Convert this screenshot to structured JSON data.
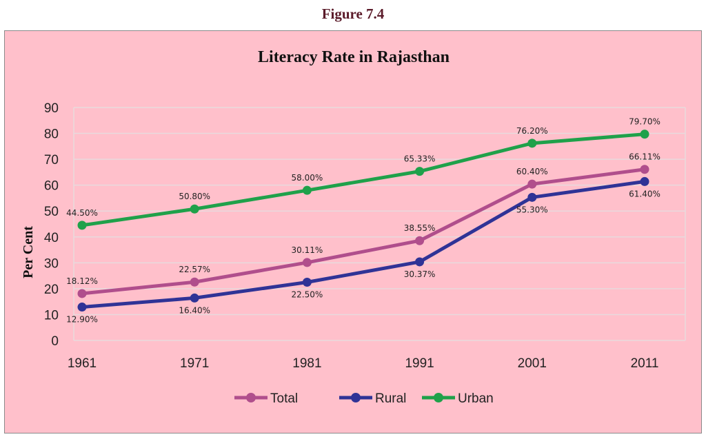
{
  "figure_label": "Figure 7.4",
  "chart_data": {
    "type": "line",
    "title": "Literacy Rate in Rajasthan",
    "xlabel": "",
    "ylabel": "Per Cent",
    "ylim": [
      0,
      90
    ],
    "yticks": [
      0,
      10,
      20,
      30,
      40,
      50,
      60,
      70,
      80,
      90
    ],
    "grid": true,
    "legend_position": "bottom",
    "categories": [
      "1961",
      "1971",
      "1981",
      "1991",
      "2001",
      "2011"
    ],
    "series": [
      {
        "name": "Total",
        "color": "#b04e8c",
        "values": [
          18.12,
          22.57,
          30.11,
          38.55,
          60.4,
          66.11
        ],
        "labels": [
          "18.12%",
          "22.57%",
          "30.11%",
          "38.55%",
          "60.40%",
          "66.11%"
        ],
        "label_positions": [
          "above",
          "above",
          "above",
          "above",
          "above",
          "above"
        ]
      },
      {
        "name": "Rural",
        "color": "#2f3396",
        "values": [
          12.9,
          16.4,
          22.5,
          30.37,
          55.3,
          61.4
        ],
        "labels": [
          "12.90%",
          "16.40%",
          "22.50%",
          "30.37%",
          "55.30%",
          "61.40%"
        ],
        "label_positions": [
          "below",
          "below",
          "below",
          "below",
          "below",
          "below"
        ]
      },
      {
        "name": "Urban",
        "color": "#1fa14a",
        "values": [
          44.5,
          50.8,
          58.0,
          65.33,
          76.2,
          79.7
        ],
        "labels": [
          "44.50%",
          "50.80%",
          "58.00%",
          "65.33%",
          "76.20%",
          "79.70%"
        ],
        "label_positions": [
          "above",
          "above",
          "above",
          "above",
          "above",
          "above"
        ]
      }
    ]
  }
}
